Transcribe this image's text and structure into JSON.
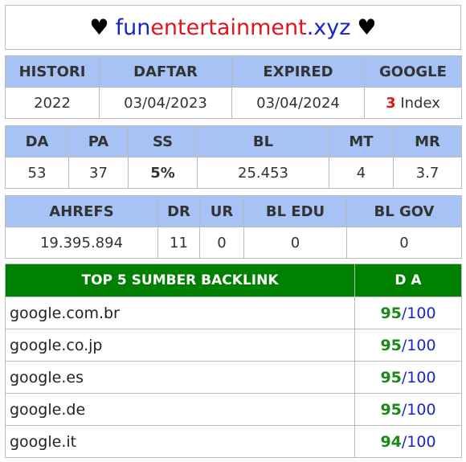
{
  "site": {
    "name_part1": "fun",
    "name_part2": "entertainment",
    "name_part3": ".xyz",
    "heart": "♥"
  },
  "history": {
    "headers": [
      "HISTORI",
      "DAFTAR",
      "EXPIRED",
      "GOOGLE"
    ],
    "histori": "2022",
    "daftar": "03/04/2023",
    "expired": "03/04/2024",
    "google_count": "3",
    "google_label": "Index"
  },
  "metrics": {
    "headers": [
      "DA",
      "PA",
      "SS",
      "BL",
      "MT",
      "MR"
    ],
    "values": [
      "53",
      "37",
      "5%",
      "25.453",
      "4",
      "3.7"
    ]
  },
  "links": {
    "headers": [
      "AHREFS",
      "DR",
      "UR",
      "BL EDU",
      "BL GOV"
    ],
    "values": [
      "19.395.894",
      "11",
      "0",
      "0",
      "0"
    ]
  },
  "backlinks": {
    "header_source": "TOP 5 SUMBER BACKLINK",
    "header_da": "D A",
    "separator": "/",
    "rows": [
      {
        "domain": "google.com.br",
        "da": "95",
        "max": "100"
      },
      {
        "domain": "google.co.jp",
        "da": "95",
        "max": "100"
      },
      {
        "domain": "google.es",
        "da": "95",
        "max": "100"
      },
      {
        "domain": "google.de",
        "da": "95",
        "max": "100"
      },
      {
        "domain": "google.it",
        "da": "94",
        "max": "100"
      }
    ]
  },
  "colors": {
    "header_blue": "#a7c3f5",
    "header_green": "#008000",
    "brand_blue": "#1a25c6",
    "brand_red": "#e0161c",
    "good_green": "#1a8a1a"
  }
}
